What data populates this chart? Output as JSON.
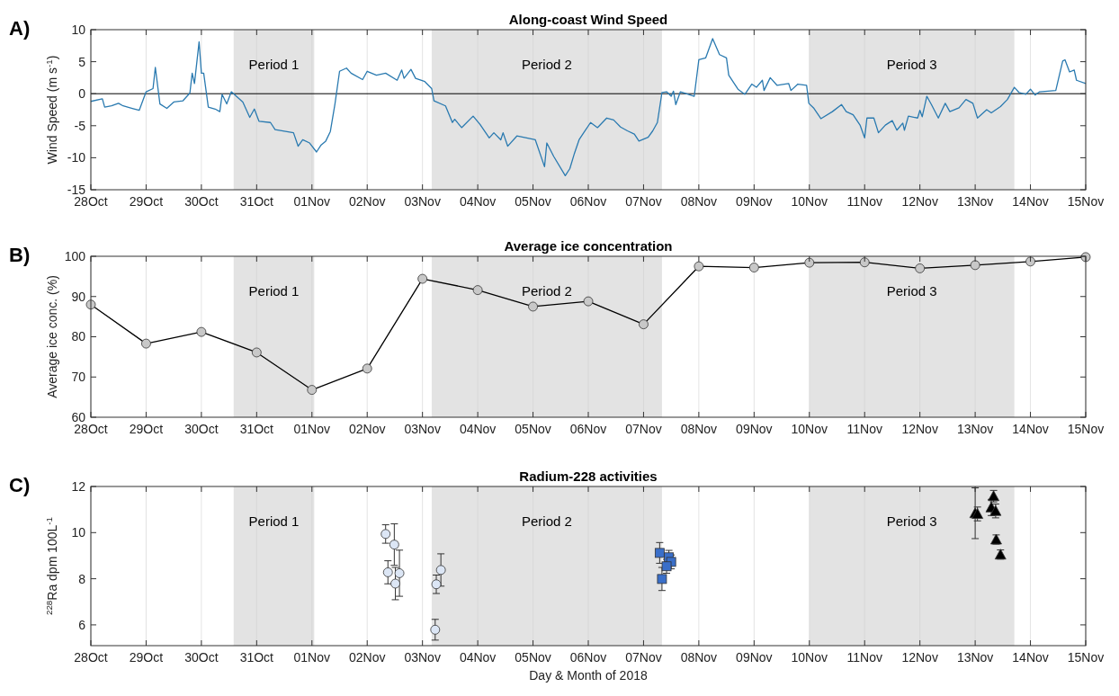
{
  "chart_data": [
    {
      "type": "line",
      "title": "Along-coast Wind Speed",
      "ylabel": "Wind Speed (m s$^{-1}$)",
      "annotations": [
        "A)"
      ],
      "grid": "x",
      "xlim": [
        "2018-10-28",
        "2018-11-15"
      ],
      "ylim": [
        -15,
        10
      ],
      "xticks": [
        {
          "value": "2018-10-28",
          "label": "28Oct"
        },
        {
          "value": "2018-10-29",
          "label": "29Oct"
        },
        {
          "value": "2018-10-30",
          "label": "30Oct"
        },
        {
          "value": "2018-10-31",
          "label": "31Oct"
        },
        {
          "value": "2018-11-01",
          "label": "01Nov"
        },
        {
          "value": "2018-11-02",
          "label": "02Nov"
        },
        {
          "value": "2018-11-03",
          "label": "03Nov"
        },
        {
          "value": "2018-11-04",
          "label": "04Nov"
        },
        {
          "value": "2018-11-05",
          "label": "05Nov"
        },
        {
          "value": "2018-11-06",
          "label": "06Nov"
        },
        {
          "value": "2018-11-07",
          "label": "07Nov"
        },
        {
          "value": "2018-11-08",
          "label": "08Nov"
        },
        {
          "value": "2018-11-09",
          "label": "09Nov"
        },
        {
          "value": "2018-11-10",
          "label": "10Nov"
        },
        {
          "value": "2018-11-11",
          "label": "11Nov"
        },
        {
          "value": "2018-11-12",
          "label": "12Nov"
        },
        {
          "value": "2018-11-13",
          "label": "13Nov"
        },
        {
          "value": "2018-11-14",
          "label": "14Nov"
        },
        {
          "value": "2018-11-15",
          "label": "15Nov"
        }
      ],
      "yticks": [
        -15,
        -10,
        -5,
        0,
        5,
        10
      ],
      "bands": [
        {
          "axis": "x",
          "from": "2018-10-30T14:00",
          "to": "2018-11-01T01:00",
          "label": "Period 1",
          "color": "#e3e3e3"
        },
        {
          "axis": "x",
          "from": "2018-11-03T04:00",
          "to": "2018-11-07T08:00",
          "label": "Period 2",
          "color": "#e3e3e3"
        },
        {
          "axis": "x",
          "from": "2018-11-10T00:00",
          "to": "2018-11-13T17:00",
          "label": "Period 3",
          "color": "#e3e3e3"
        }
      ],
      "ref_lines": [
        {
          "axis": "y",
          "value": 0,
          "color": "#000000"
        }
      ],
      "series": [
        {
          "color": "#2a7ab0",
          "x": [
            "2018-10-28T00:00",
            "2018-10-28T05:00",
            "2018-10-28T06:00",
            "2018-10-28T09:00",
            "2018-10-28T12:00",
            "2018-10-28T14:00",
            "2018-10-28T18:00",
            "2018-10-28T21:00",
            "2018-10-29T00:00",
            "2018-10-29T03:00",
            "2018-10-29T04:00",
            "2018-10-29T06:00",
            "2018-10-29T09:00",
            "2018-10-29T12:00",
            "2018-10-29T16:00",
            "2018-10-29T19:00",
            "2018-10-29T20:00",
            "2018-10-29T21:00",
            "2018-10-29T23:00",
            "2018-10-30T00:00",
            "2018-10-30T01:00",
            "2018-10-30T03:00",
            "2018-10-30T06:00",
            "2018-10-30T08:00",
            "2018-10-30T09:00",
            "2018-10-30T11:00",
            "2018-10-30T13:00",
            "2018-10-30T18:00",
            "2018-10-30T21:00",
            "2018-10-30T23:00",
            "2018-10-31T01:00",
            "2018-10-31T06:00",
            "2018-10-31T08:00",
            "2018-10-31T16:00",
            "2018-10-31T18:00",
            "2018-10-31T20:00",
            "2018-10-31T23:00",
            "2018-11-01T02:00",
            "2018-11-01T04:00",
            "2018-11-01T06:00",
            "2018-11-01T08:00",
            "2018-11-01T10:00",
            "2018-11-01T12:00",
            "2018-11-01T15:00",
            "2018-11-01T17:00",
            "2018-11-01T22:00",
            "2018-11-02T00:00",
            "2018-11-02T04:00",
            "2018-11-02T08:00",
            "2018-11-02T13:00",
            "2018-11-02T15:00",
            "2018-11-02T16:00",
            "2018-11-02T19:00",
            "2018-11-02T21:00",
            "2018-11-03T01:00",
            "2018-11-03T04:00",
            "2018-11-03T05:00",
            "2018-11-03T10:00",
            "2018-11-03T13:00",
            "2018-11-03T14:00",
            "2018-11-03T17:00",
            "2018-11-03T22:00",
            "2018-11-04T01:00",
            "2018-11-04T05:00",
            "2018-11-04T07:00",
            "2018-11-04T10:00",
            "2018-11-04T11:00",
            "2018-11-04T13:00",
            "2018-11-04T17:00",
            "2018-11-05T01:00",
            "2018-11-05T05:00",
            "2018-11-05T06:00",
            "2018-11-05T09:00",
            "2018-11-05T14:00",
            "2018-11-05T16:00",
            "2018-11-05T18:00",
            "2018-11-05T20:00",
            "2018-11-05T22:00",
            "2018-11-06T01:00",
            "2018-11-06T04:00",
            "2018-11-06T08:00",
            "2018-11-06T11:00",
            "2018-11-06T14:00",
            "2018-11-06T17:00",
            "2018-11-06T20:00",
            "2018-11-06T22:00",
            "2018-11-07T02:00",
            "2018-11-07T04:00",
            "2018-11-07T06:00",
            "2018-11-07T08:00",
            "2018-11-07T10:00",
            "2018-11-07T12:00",
            "2018-11-07T13:00",
            "2018-11-07T14:00",
            "2018-11-07T16:00",
            "2018-11-07T22:00",
            "2018-11-08T00:00",
            "2018-11-08T03:00",
            "2018-11-08T06:00",
            "2018-11-08T09:00",
            "2018-11-08T12:00",
            "2018-11-08T13:00",
            "2018-11-08T17:00",
            "2018-11-08T20:00",
            "2018-11-08T23:00",
            "2018-11-09T01:00",
            "2018-11-09T03:36",
            "2018-11-09T04:19",
            "2018-11-09T07:00",
            "2018-11-09T10:00",
            "2018-11-09T15:00",
            "2018-11-09T16:00",
            "2018-11-09T19:00",
            "2018-11-09T22:48",
            "2018-11-09T23:46",
            "2018-11-10T02:00",
            "2018-11-10T05:00",
            "2018-11-10T10:00",
            "2018-11-10T14:00",
            "2018-11-10T16:00",
            "2018-11-10T19:00",
            "2018-11-10T22:00",
            "2018-11-11T00:00",
            "2018-11-11T01:00",
            "2018-11-11T04:00",
            "2018-11-11T06:00",
            "2018-11-11T09:00",
            "2018-11-11T12:00",
            "2018-11-11T14:00",
            "2018-11-11T16:34",
            "2018-11-11T17:17",
            "2018-11-11T19:00",
            "2018-11-11T23:00",
            "2018-11-12T00:00",
            "2018-11-12T01:00",
            "2018-11-12T03:00",
            "2018-11-12T05:00",
            "2018-11-12T08:00",
            "2018-11-12T11:00",
            "2018-11-12T13:00",
            "2018-11-12T17:00",
            "2018-11-12T20:00",
            "2018-11-12T23:00",
            "2018-11-13T01:00",
            "2018-11-13T05:00",
            "2018-11-13T07:00",
            "2018-11-13T11:00",
            "2018-11-13T14:00",
            "2018-11-13T17:00",
            "2018-11-13T19:00",
            "2018-11-13T22:00",
            "2018-11-14T00:00",
            "2018-11-14T02:00",
            "2018-11-14T04:00",
            "2018-11-14T11:00",
            "2018-11-14T14:00",
            "2018-11-14T15:00",
            "2018-11-14T17:00",
            "2018-11-14T19:00",
            "2018-11-14T20:00",
            "2018-11-15T00:00"
          ],
          "values": [
            -1.2,
            -0.8,
            -2.1,
            -1.9,
            -1.5,
            -1.9,
            -2.3,
            -2.6,
            0.3,
            0.8,
            4.1,
            -1.6,
            -2.3,
            -1.3,
            -1.1,
            0.1,
            3.2,
            1.6,
            8.1,
            3.2,
            3.2,
            -2.1,
            -2.4,
            -2.8,
            -0.1,
            -1.6,
            0.3,
            -1.3,
            -3.7,
            -2.4,
            -4.3,
            -4.5,
            -5.6,
            -6.1,
            -8.2,
            -7.2,
            -7.7,
            -9.1,
            -8.0,
            -7.4,
            -5.9,
            -1.6,
            3.5,
            4.0,
            3.2,
            2.2,
            3.5,
            2.9,
            3.2,
            2.1,
            3.7,
            2.4,
            3.8,
            2.4,
            1.9,
            0.8,
            -1.1,
            -1.9,
            -4.5,
            -4.0,
            -5.3,
            -3.5,
            -4.8,
            -6.9,
            -6.1,
            -7.2,
            -6.1,
            -8.2,
            -6.6,
            -7.2,
            -11.4,
            -7.7,
            -9.8,
            -12.8,
            -11.7,
            -9.3,
            -7.2,
            -6.1,
            -4.5,
            -5.3,
            -3.8,
            -4.1,
            -5.2,
            -5.8,
            -6.3,
            -7.4,
            -6.8,
            -5.8,
            -4.5,
            0.2,
            0.3,
            -0.4,
            0.4,
            -1.7,
            0.3,
            -0.4,
            5.3,
            5.6,
            8.6,
            6.1,
            5.6,
            2.9,
            0.7,
            -0.1,
            1.5,
            1.0,
            2.1,
            0.5,
            2.5,
            1.3,
            1.6,
            0.5,
            1.5,
            1.3,
            -1.5,
            -2.3,
            -3.9,
            -2.8,
            -1.7,
            -2.8,
            -3.3,
            -4.9,
            -6.9,
            -3.8,
            -3.8,
            -6.1,
            -4.9,
            -4.2,
            -5.7,
            -4.6,
            -5.7,
            -3.5,
            -3.8,
            -2.6,
            -3.6,
            -0.4,
            -1.7,
            -3.8,
            -1.5,
            -2.8,
            -2.2,
            -0.9,
            -1.5,
            -3.8,
            -2.5,
            -3.0,
            -2.0,
            -0.9,
            1.0,
            0.2,
            -0.1,
            0.7,
            -0.2,
            0.3,
            0.5,
            5.1,
            5.3,
            3.4,
            3.7,
            2.1,
            1.6
          ]
        }
      ]
    },
    {
      "type": "line",
      "title": "Average ice concentration",
      "ylabel": "Average ice conc. (%)",
      "annotations": [
        "B)"
      ],
      "grid": "x",
      "marker": "circle",
      "xlim": [
        "2018-10-28",
        "2018-11-15"
      ],
      "ylim": [
        60,
        100
      ],
      "xticks": [
        {
          "value": "2018-10-28",
          "label": "28Oct"
        },
        {
          "value": "2018-10-29",
          "label": "29Oct"
        },
        {
          "value": "2018-10-30",
          "label": "30Oct"
        },
        {
          "value": "2018-10-31",
          "label": "31Oct"
        },
        {
          "value": "2018-11-01",
          "label": "01Nov"
        },
        {
          "value": "2018-11-02",
          "label": "02Nov"
        },
        {
          "value": "2018-11-03",
          "label": "03Nov"
        },
        {
          "value": "2018-11-04",
          "label": "04Nov"
        },
        {
          "value": "2018-11-05",
          "label": "05Nov"
        },
        {
          "value": "2018-11-06",
          "label": "06Nov"
        },
        {
          "value": "2018-11-07",
          "label": "07Nov"
        },
        {
          "value": "2018-11-08",
          "label": "08Nov"
        },
        {
          "value": "2018-11-09",
          "label": "09Nov"
        },
        {
          "value": "2018-11-10",
          "label": "10Nov"
        },
        {
          "value": "2018-11-11",
          "label": "11Nov"
        },
        {
          "value": "2018-11-12",
          "label": "12Nov"
        },
        {
          "value": "2018-11-13",
          "label": "13Nov"
        },
        {
          "value": "2018-11-14",
          "label": "14Nov"
        },
        {
          "value": "2018-11-15",
          "label": "15Nov"
        }
      ],
      "yticks": [
        60,
        70,
        80,
        90,
        100
      ],
      "bands": [
        {
          "axis": "x",
          "from": "2018-10-30T14:00",
          "to": "2018-11-01T01:00",
          "label": "Period 1",
          "color": "#e3e3e3"
        },
        {
          "axis": "x",
          "from": "2018-11-03T04:00",
          "to": "2018-11-07T08:00",
          "label": "Period 2",
          "color": "#e3e3e3"
        },
        {
          "axis": "x",
          "from": "2018-11-10T00:00",
          "to": "2018-11-13T17:00",
          "label": "Period 3",
          "color": "#e3e3e3"
        }
      ],
      "series": [
        {
          "color": "#000000",
          "x": [
            "2018-10-28",
            "2018-10-29",
            "2018-10-30",
            "2018-10-31",
            "2018-11-01",
            "2018-11-02",
            "2018-11-03",
            "2018-11-04",
            "2018-11-05",
            "2018-11-06",
            "2018-11-07",
            "2018-11-08",
            "2018-11-09",
            "2018-11-10",
            "2018-11-11",
            "2018-11-12",
            "2018-11-13",
            "2018-11-14",
            "2018-11-15"
          ],
          "values": [
            88,
            78.3,
            81.2,
            76.1,
            66.8,
            72.1,
            94.4,
            91.6,
            87.5,
            88.8,
            83.1,
            97.5,
            97.2,
            98.4,
            98.5,
            97.0,
            97.8,
            98.7,
            99.8
          ]
        }
      ]
    },
    {
      "type": "scatter",
      "title": "Radium-228 activities",
      "ylabel": "$^{228}$Ra dpm 100L$^{-1}$",
      "xlabel": "Day & Month of 2018",
      "annotations": [
        "C)"
      ],
      "grid": "x",
      "xlim": [
        "2018-10-28",
        "2018-11-15"
      ],
      "ylim": [
        5.1,
        12
      ],
      "xticks": [
        {
          "value": "2018-10-28",
          "label": "28Oct"
        },
        {
          "value": "2018-10-29",
          "label": "29Oct"
        },
        {
          "value": "2018-10-30",
          "label": "30Oct"
        },
        {
          "value": "2018-10-31",
          "label": "31Oct"
        },
        {
          "value": "2018-11-01",
          "label": "01Nov"
        },
        {
          "value": "2018-11-02",
          "label": "02Nov"
        },
        {
          "value": "2018-11-03",
          "label": "03Nov"
        },
        {
          "value": "2018-11-04",
          "label": "04Nov"
        },
        {
          "value": "2018-11-05",
          "label": "05Nov"
        },
        {
          "value": "2018-11-06",
          "label": "06Nov"
        },
        {
          "value": "2018-11-07",
          "label": "07Nov"
        },
        {
          "value": "2018-11-08",
          "label": "08Nov"
        },
        {
          "value": "2018-11-09",
          "label": "09Nov"
        },
        {
          "value": "2018-11-10",
          "label": "10Nov"
        },
        {
          "value": "2018-11-11",
          "label": "11Nov"
        },
        {
          "value": "2018-11-12",
          "label": "12Nov"
        },
        {
          "value": "2018-11-13",
          "label": "13Nov"
        },
        {
          "value": "2018-11-14",
          "label": "14Nov"
        },
        {
          "value": "2018-11-15",
          "label": "15Nov"
        }
      ],
      "yticks": [
        6,
        8,
        10,
        12
      ],
      "bands": [
        {
          "axis": "x",
          "from": "2018-10-30T14:00",
          "to": "2018-11-01T01:00",
          "label": "Period 1",
          "color": "#e3e3e3"
        },
        {
          "axis": "x",
          "from": "2018-11-03T04:00",
          "to": "2018-11-07T08:00",
          "label": "Period 2",
          "color": "#e3e3e3"
        },
        {
          "axis": "x",
          "from": "2018-11-10T00:00",
          "to": "2018-11-13T17:00",
          "label": "Period 3",
          "color": "#e3e3e3"
        }
      ],
      "series": [
        {
          "color": "#dce6f5",
          "marker": "circle",
          "x": [
            "2018-11-02T08:00",
            "2018-11-02T11:46",
            "2018-11-02T09:00",
            "2018-11-02T14:00",
            "2018-11-02T12:14",
            "2018-11-03T08:00",
            "2018-11-03T06:00",
            "2018-11-03T05:31"
          ],
          "values": [
            9.94,
            9.48,
            8.28,
            8.24,
            7.79,
            8.38,
            7.76,
            5.79
          ],
          "errors": [
            0.4,
            0.9,
            0.5,
            1.0,
            0.7,
            0.7,
            0.4,
            0.45
          ]
        },
        {
          "color": "#3a6fc9",
          "marker": "square",
          "x": [
            "2018-11-07T07:00",
            "2018-11-07T11:00",
            "2018-11-07T12:00",
            "2018-11-07T10:00",
            "2018-11-07T08:00"
          ],
          "values": [
            9.12,
            8.93,
            8.73,
            8.54,
            7.99
          ],
          "errors": [
            0.45,
            0.3,
            0.3,
            0.3,
            0.5
          ]
        },
        {
          "color": "#000000",
          "marker": "triangle",
          "x": [
            "2018-11-13T00:00",
            "2018-11-13T01:00",
            "2018-11-13T08:00",
            "2018-11-13T07:00",
            "2018-11-13T08:53",
            "2018-11-13T09:07",
            "2018-11-13T11:00"
          ],
          "values": [
            10.84,
            10.81,
            11.58,
            11.09,
            10.94,
            9.7,
            9.05
          ],
          "errors": [
            1.1,
            0.3,
            0.25,
            0.35,
            0.3,
            0.2,
            0.2
          ]
        }
      ]
    }
  ]
}
